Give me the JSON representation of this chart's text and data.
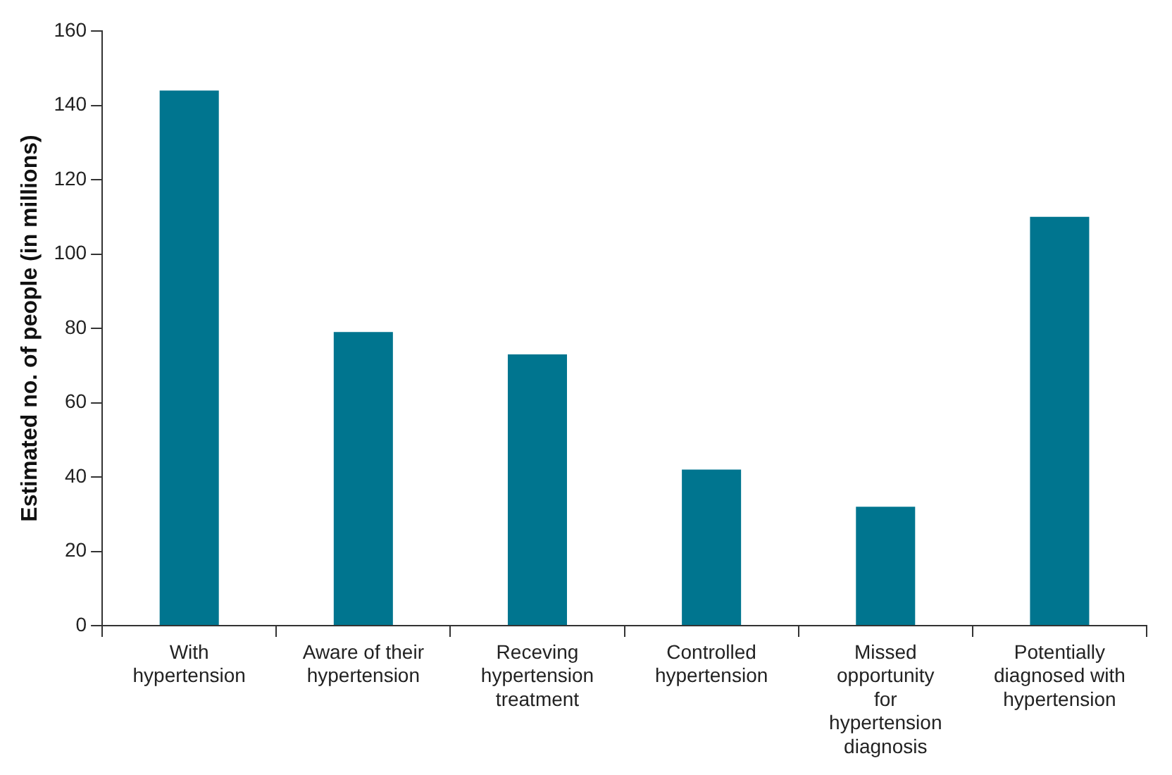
{
  "chart_data": {
    "type": "bar",
    "ylabel": "Estimated no. of people (in millions)",
    "categories": [
      "With hypertension",
      "Aware of their hypertension",
      "Receving hypertension treatment",
      "Controlled hypertension",
      "Missed opportunity for hypertension diagnosis",
      "Potentially diagnosed with hypertension"
    ],
    "values": [
      144,
      79,
      73,
      42,
      32,
      110
    ],
    "color": "#00758f",
    "ylim": [
      0,
      160
    ],
    "yticks": [
      0,
      20,
      40,
      60,
      80,
      100,
      120,
      140,
      160
    ],
    "grid": false,
    "legend": false
  }
}
